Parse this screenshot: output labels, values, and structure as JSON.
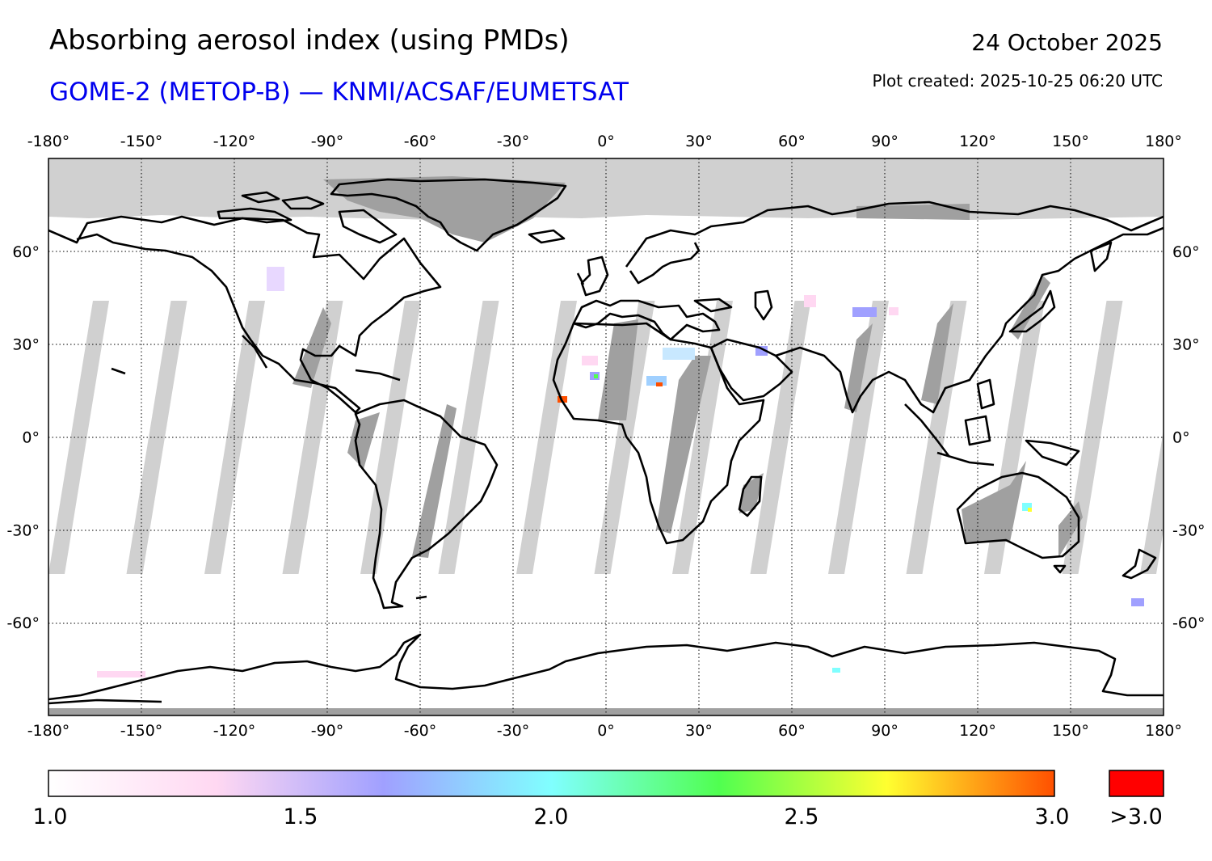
{
  "header": {
    "title": "Absorbing aerosol index (using PMDs)",
    "subtitle": "GOME-2 (METOP-B) — KNMI/ACSAF/EUMETSAT",
    "date": "24 October 2025",
    "created": "Plot created: 2025-10-25 06:20 UTC"
  },
  "axes": {
    "lon_ticks": [
      "-180°",
      "-150°",
      "-120°",
      "-90°",
      "-60°",
      "-30°",
      "0°",
      "30°",
      "60°",
      "90°",
      "120°",
      "150°",
      "180°"
    ],
    "lat_ticks": [
      "60°",
      "30°",
      "0°",
      "-30°",
      "-60°"
    ],
    "lon_range": [
      -180,
      180
    ],
    "lat_range": [
      -90,
      90
    ],
    "grid": true
  },
  "colorbar": {
    "labels": [
      "1.0",
      "1.5",
      "2.0",
      "2.5",
      "3.0"
    ],
    "overflow_label": ">3.0",
    "min": 1.0,
    "max": 3.0,
    "stops": [
      "#ffffff",
      "#ffd8f2",
      "#a0a0ff",
      "#80ffff",
      "#50ff50",
      "#ffff30",
      "#ff5000"
    ],
    "overflow_color": "#ff0000"
  },
  "map_colors": {
    "no_data_light": "#d0d0d0",
    "no_data_land": "#a0a0a0",
    "coast": "#000000"
  }
}
